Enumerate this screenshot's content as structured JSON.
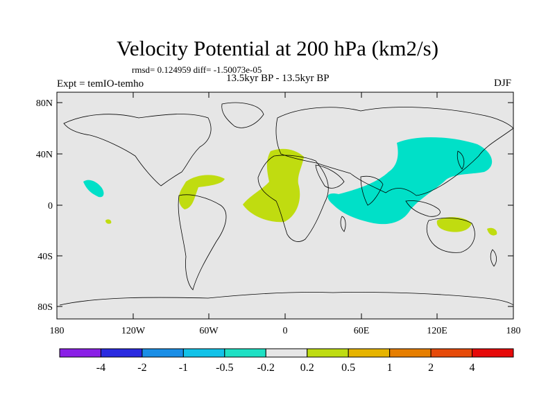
{
  "header": {
    "title": "Velocity Potential at 200 hPa (km2/s)",
    "stats": "rmsd= 0.124959  diff= -1.50073e-05",
    "period": "13.5kyr BP - 13.5kyr BP",
    "experiment": "Expt = temIO-temho",
    "season": "DJF"
  },
  "axes": {
    "lat_labels": [
      "80N",
      "40N",
      "0",
      "40S",
      "80S"
    ],
    "lon_labels": [
      "180",
      "120W",
      "60W",
      "0",
      "60E",
      "120E",
      "180"
    ]
  },
  "colorbar": {
    "labels": [
      "-4",
      "-2",
      "-1",
      "-0.5",
      "-0.2",
      "0.2",
      "0.5",
      "1",
      "2",
      "4"
    ],
    "colors": [
      "#8a1fe6",
      "#2a2ae0",
      "#1a8ee6",
      "#12c2e8",
      "#1ee0c4",
      "#e6e6e6",
      "#bedc12",
      "#e6b400",
      "#e67e00",
      "#e64a0a",
      "#e60a0a"
    ]
  },
  "map": {
    "background_color": "#e6e6e6",
    "region_colors": {
      "negative": "#00e0c8",
      "positive": "#c0dc10"
    }
  }
}
